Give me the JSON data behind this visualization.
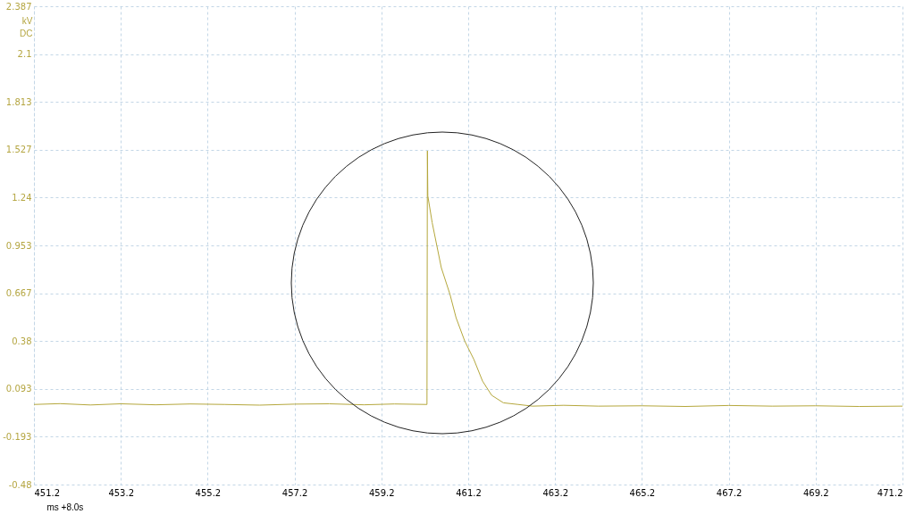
{
  "chart_data": {
    "type": "line",
    "xlabel": "ms   +8.0s",
    "ylabel": "kV DC",
    "x": [
      451.2,
      451.8,
      452.5,
      453.2,
      454.0,
      454.8,
      455.6,
      456.4,
      457.2,
      458.0,
      458.8,
      459.5,
      460.25,
      460.26,
      460.27,
      460.37,
      460.58,
      460.78,
      460.92,
      461.12,
      461.33,
      461.53,
      461.74,
      462.01,
      462.35,
      462.68,
      463.4,
      464.2,
      465.2,
      466.2,
      467.2,
      468.2,
      469.2,
      470.2,
      471.2
    ],
    "series": [
      {
        "color": "#b5a73c",
        "values": [
          0.0,
          0.005,
          -0.003,
          0.004,
          -0.002,
          0.003,
          0.0,
          -0.004,
          0.002,
          0.004,
          -0.002,
          0.003,
          0.0,
          1.52,
          1.25,
          1.09,
          0.82,
          0.66,
          0.52,
          0.38,
          0.27,
          0.14,
          0.055,
          0.01,
          0.0,
          -0.01,
          -0.005,
          -0.01,
          -0.008,
          -0.012,
          -0.006,
          -0.01,
          -0.008,
          -0.012,
          -0.01
        ]
      }
    ],
    "xlim": [
      451.2,
      471.2
    ],
    "xticks": [
      451.2,
      453.2,
      455.2,
      457.2,
      459.2,
      461.2,
      463.2,
      465.2,
      467.2,
      469.2,
      471.2
    ],
    "ylim": [
      -0.48,
      2.387
    ],
    "yticks": [
      -0.48,
      -0.193,
      0.093,
      0.38,
      0.667,
      0.953,
      1.24,
      1.527,
      1.813,
      2.1,
      2.387
    ],
    "grid": true,
    "marker": "none",
    "line_style": "solid"
  }
}
